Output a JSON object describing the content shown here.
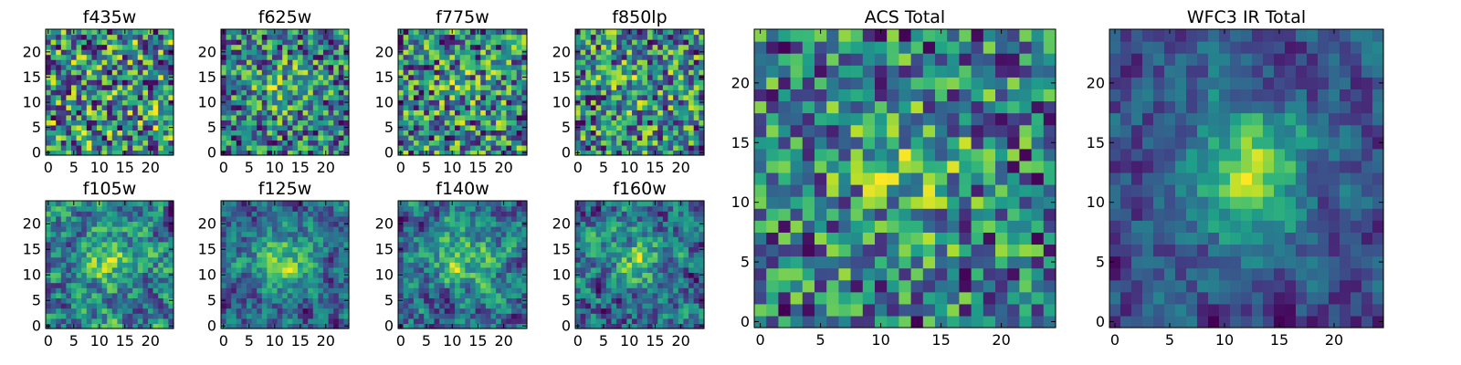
{
  "chart_data": {
    "type": "heatmap",
    "colormap": "viridis",
    "grid": false,
    "panels": [
      {
        "id": "f435w",
        "title": "f435w",
        "grid_size": 25,
        "seed": 11,
        "smooth": 0,
        "blob_strength": 0.0,
        "xlim": [
          0,
          24
        ],
        "ylim": [
          0,
          24
        ],
        "xticks": [
          0,
          5,
          10,
          15,
          20
        ],
        "yticks": [
          0,
          5,
          10,
          15,
          20
        ]
      },
      {
        "id": "f625w",
        "title": "f625w",
        "grid_size": 25,
        "seed": 23,
        "smooth": 0,
        "blob_strength": 0.25,
        "xlim": [
          0,
          24
        ],
        "ylim": [
          0,
          24
        ],
        "xticks": [
          0,
          5,
          10,
          15,
          20
        ],
        "yticks": [
          0,
          5,
          10,
          15,
          20
        ]
      },
      {
        "id": "f775w",
        "title": "f775w",
        "grid_size": 25,
        "seed": 37,
        "smooth": 0,
        "blob_strength": 0.1,
        "xlim": [
          0,
          24
        ],
        "ylim": [
          0,
          24
        ],
        "xticks": [
          0,
          5,
          10,
          15,
          20
        ],
        "yticks": [
          0,
          5,
          10,
          15,
          20
        ]
      },
      {
        "id": "f850lp",
        "title": "f850lp",
        "grid_size": 25,
        "seed": 41,
        "smooth": 0,
        "blob_strength": 0.1,
        "xlim": [
          0,
          24
        ],
        "ylim": [
          0,
          24
        ],
        "xticks": [
          0,
          5,
          10,
          15,
          20
        ],
        "yticks": [
          0,
          5,
          10,
          15,
          20
        ]
      },
      {
        "id": "f105w",
        "title": "f105w",
        "grid_size": 25,
        "seed": 53,
        "smooth": 1,
        "blob_strength": 0.25,
        "xlim": [
          0,
          24
        ],
        "ylim": [
          0,
          24
        ],
        "xticks": [
          0,
          5,
          10,
          15,
          20
        ],
        "yticks": [
          0,
          5,
          10,
          15,
          20
        ]
      },
      {
        "id": "f125w",
        "title": "f125w",
        "grid_size": 25,
        "seed": 67,
        "smooth": 1,
        "blob_strength": 0.45,
        "xlim": [
          0,
          24
        ],
        "ylim": [
          0,
          24
        ],
        "xticks": [
          0,
          5,
          10,
          15,
          20
        ],
        "yticks": [
          0,
          5,
          10,
          15,
          20
        ]
      },
      {
        "id": "f140w",
        "title": "f140w",
        "grid_size": 25,
        "seed": 79,
        "smooth": 1,
        "blob_strength": 0.4,
        "xlim": [
          0,
          24
        ],
        "ylim": [
          0,
          24
        ],
        "xticks": [
          0,
          5,
          10,
          15,
          20
        ],
        "yticks": [
          0,
          5,
          10,
          15,
          20
        ]
      },
      {
        "id": "f160w",
        "title": "f160w",
        "grid_size": 25,
        "seed": 83,
        "smooth": 1,
        "blob_strength": 0.35,
        "xlim": [
          0,
          24
        ],
        "ylim": [
          0,
          24
        ],
        "xticks": [
          0,
          5,
          10,
          15,
          20
        ],
        "yticks": [
          0,
          5,
          10,
          15,
          20
        ]
      },
      {
        "id": "acs-total",
        "title": "ACS Total",
        "grid_size": 25,
        "seed": 97,
        "smooth": 0,
        "blob_strength": 0.3,
        "xlim": [
          0,
          24
        ],
        "ylim": [
          0,
          24
        ],
        "xticks": [
          0,
          5,
          10,
          15,
          20
        ],
        "yticks": [
          0,
          5,
          10,
          15,
          20
        ]
      },
      {
        "id": "wfc3-ir-total",
        "title": "WFC3 IR Total",
        "grid_size": 25,
        "seed": 101,
        "smooth": 1,
        "blob_strength": 0.8,
        "xlim": [
          0,
          24
        ],
        "ylim": [
          0,
          24
        ],
        "xticks": [
          0,
          5,
          10,
          15,
          20
        ],
        "yticks": [
          0,
          5,
          10,
          15,
          20
        ]
      }
    ]
  }
}
